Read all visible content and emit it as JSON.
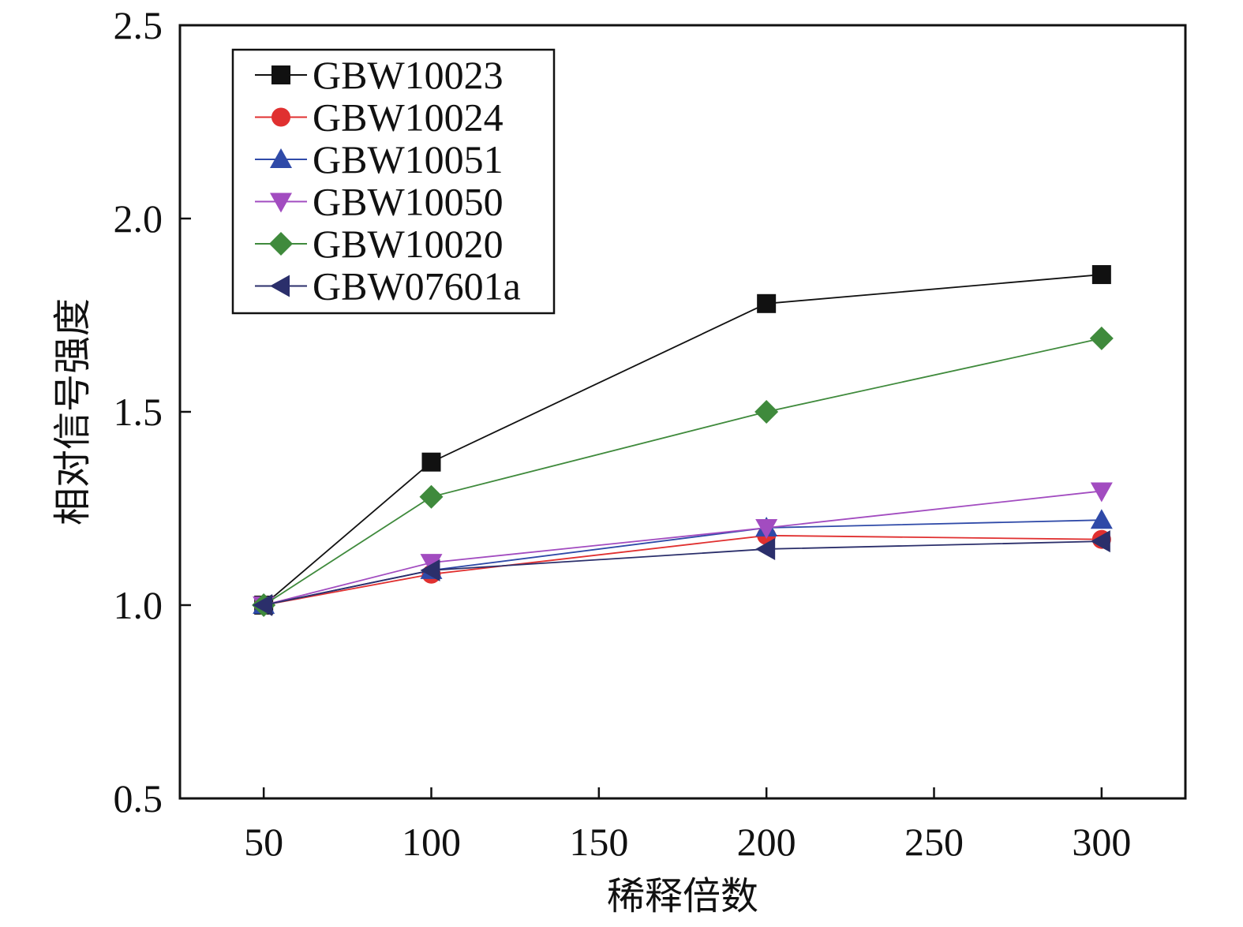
{
  "chart_data": {
    "type": "line",
    "title": "",
    "xlabel": "稀释倍数",
    "ylabel": "相对信号强度",
    "x": [
      50,
      100,
      200,
      300
    ],
    "xlim": [
      25,
      325
    ],
    "ylim": [
      0.5,
      2.5
    ],
    "xticks": [
      50,
      100,
      150,
      200,
      250,
      300
    ],
    "yticks": [
      0.5,
      1.0,
      1.5,
      2.0,
      2.5
    ],
    "xtick_labels": [
      "50",
      "100",
      "150",
      "200",
      "250",
      "300"
    ],
    "ytick_labels": [
      "0.5",
      "1.0",
      "1.5",
      "2.0",
      "2.5"
    ],
    "grid": false,
    "legend_position": "top-left",
    "series": [
      {
        "name": "GBW10023",
        "values": [
          1.0,
          1.37,
          1.78,
          1.855
        ],
        "color": "#111111",
        "marker": "square"
      },
      {
        "name": "GBW10024",
        "values": [
          1.0,
          1.08,
          1.18,
          1.17
        ],
        "color": "#e03030",
        "marker": "circle"
      },
      {
        "name": "GBW10051",
        "values": [
          1.0,
          1.09,
          1.2,
          1.22
        ],
        "color": "#2f4aa8",
        "marker": "triangle-up"
      },
      {
        "name": "GBW10050",
        "values": [
          1.0,
          1.11,
          1.2,
          1.295
        ],
        "color": "#a24cc0",
        "marker": "triangle-down"
      },
      {
        "name": "GBW10020",
        "values": [
          1.0,
          1.28,
          1.5,
          1.69
        ],
        "color": "#3f8a3c",
        "marker": "diamond"
      },
      {
        "name": "GBW07601a",
        "values": [
          1.0,
          1.09,
          1.145,
          1.165
        ],
        "color": "#2b2f6b",
        "marker": "triangle-left"
      }
    ]
  }
}
